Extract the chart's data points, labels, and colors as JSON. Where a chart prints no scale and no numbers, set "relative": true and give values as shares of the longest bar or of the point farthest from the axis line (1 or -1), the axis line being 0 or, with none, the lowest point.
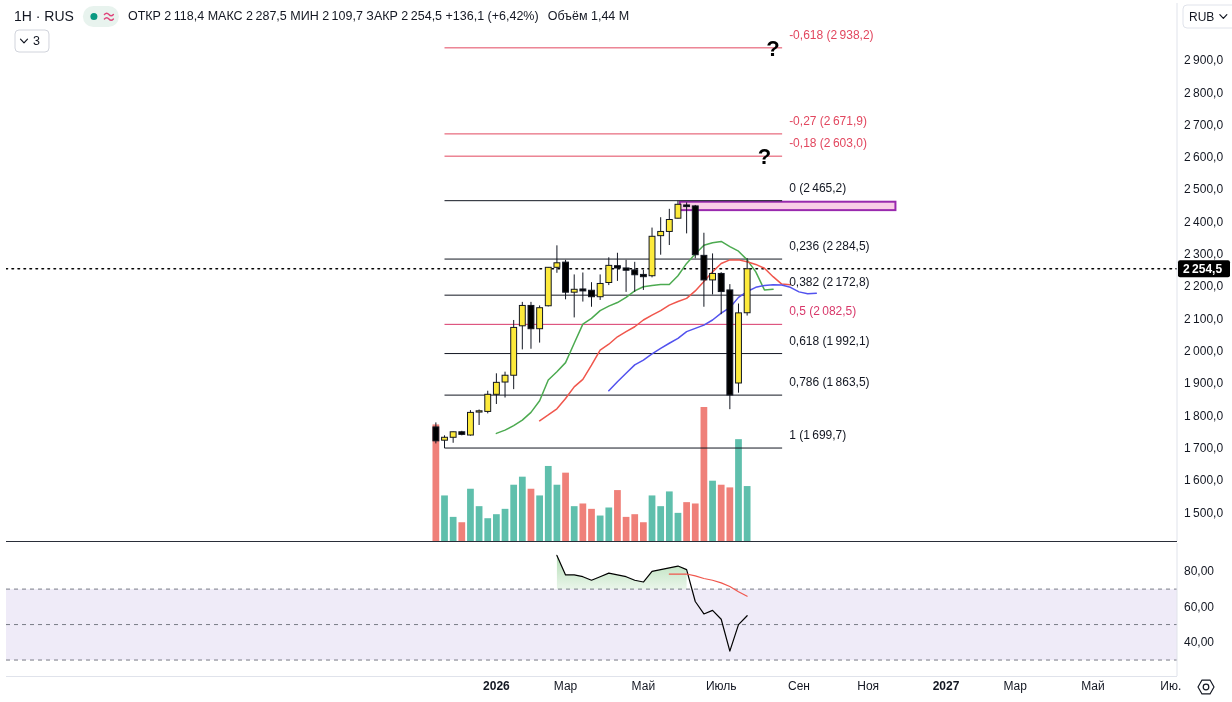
{
  "chart_data": [
    {
      "type": "candlestick",
      "title": "1Н · RUS",
      "subtitle": "ОТКР 2 118,4 МАКС 2 287,5 МИН 2 109,7 ЗАКР 2 254,5 +136,1 (+6,42%)",
      "ylabel": "RUB",
      "x": [
        "2025-11-17",
        "2025-11-24",
        "2025-12-01",
        "2025-12-08",
        "2025-12-15",
        "2025-12-22",
        "2025-12-29",
        "2026-01-05",
        "2026-01-12",
        "2026-01-19",
        "2026-01-26",
        "2026-02-02",
        "2026-02-09",
        "2026-02-16",
        "2026-02-23",
        "2026-03-02",
        "2026-03-09",
        "2026-03-16",
        "2026-03-23",
        "2026-03-30",
        "2026-04-06",
        "2026-04-13",
        "2026-04-20",
        "2026-04-27",
        "2026-05-04",
        "2026-05-11",
        "2026-05-18",
        "2026-05-25",
        "2026-06-01",
        "2026-06-08",
        "2026-06-15",
        "2026-06-22",
        "2026-06-29",
        "2026-07-06",
        "2026-07-13",
        "2026-07-20",
        "2026-07-27"
      ],
      "ohlc": [
        [
          1765,
          1779,
          1714,
          1722
        ],
        [
          1724,
          1739,
          1699.7,
          1733
        ],
        [
          1733,
          1751,
          1716,
          1750
        ],
        [
          1750,
          1753,
          1739,
          1742
        ],
        [
          1740,
          1817,
          1738,
          1810
        ],
        [
          1811,
          1819,
          1771,
          1815
        ],
        [
          1813,
          1877,
          1807,
          1866
        ],
        [
          1866,
          1931,
          1836,
          1903
        ],
        [
          1904,
          1936,
          1856,
          1925
        ],
        [
          1925,
          2096,
          1882,
          2073
        ],
        [
          2078,
          2152,
          2005,
          2141
        ],
        [
          2141,
          2152,
          2007,
          2069
        ],
        [
          2069,
          2141,
          2026,
          2134
        ],
        [
          2140,
          2260,
          2138,
          2259
        ],
        [
          2259,
          2327,
          2242,
          2273
        ],
        [
          2275,
          2282,
          2160,
          2182
        ],
        [
          2182,
          2237,
          2104,
          2191
        ],
        [
          2192,
          2243,
          2153,
          2186
        ],
        [
          2188,
          2213,
          2137,
          2168
        ],
        [
          2168,
          2237,
          2158,
          2209
        ],
        [
          2212,
          2290,
          2204,
          2265
        ],
        [
          2264,
          2304,
          2217,
          2257
        ],
        [
          2257,
          2282,
          2183,
          2250
        ],
        [
          2251,
          2276,
          2183,
          2236
        ],
        [
          2237,
          2251,
          2189,
          2230
        ],
        [
          2233,
          2382,
          2228,
          2355
        ],
        [
          2357,
          2414,
          2298,
          2370
        ],
        [
          2370,
          2440,
          2328,
          2407
        ],
        [
          2411,
          2465.2,
          2410,
          2454
        ],
        [
          2452,
          2460,
          2364,
          2447
        ],
        [
          2449,
          2452,
          2287,
          2298
        ],
        [
          2296,
          2366,
          2137,
          2220
        ],
        [
          2220,
          2302,
          2175,
          2240
        ],
        [
          2240,
          2244,
          2114,
          2184
        ],
        [
          2189,
          2207,
          1820,
          1864
        ],
        [
          1901,
          2147,
          1871,
          2118
        ],
        [
          2118.4,
          2287.5,
          2109.7,
          2254.5
        ]
      ],
      "colors": [
        "#000000",
        "#fdea3b",
        "#fdea3b",
        "#000000",
        "#fdea3b",
        "#fdea3b",
        "#fdea3b",
        "#fdea3b",
        "#fdea3b",
        "#fdea3b",
        "#fdea3b",
        "#000000",
        "#fdea3b",
        "#fdea3b",
        "#fdea3b",
        "#000000",
        "#fdea3b",
        "#000000",
        "#000000",
        "#fdea3b",
        "#fdea3b",
        "#000000",
        "#000000",
        "#000000",
        "#000000",
        "#fdea3b",
        "#fdea3b",
        "#fdea3b",
        "#fdea3b",
        "#000000",
        "#000000",
        "#000000",
        "#fdea3b",
        "#000000",
        "#000000",
        "#fdea3b",
        "#fdea3b"
      ],
      "series": [
        {
          "type": "line",
          "color": "#4caa50",
          "x": [
            "2026-01-05",
            "2026-01-12",
            "2026-01-19",
            "2026-01-26",
            "2026-02-02",
            "2026-02-09",
            "2026-02-16",
            "2026-02-23",
            "2026-03-02",
            "2026-03-09",
            "2026-03-16",
            "2026-03-23",
            "2026-03-30",
            "2026-04-06",
            "2026-04-13",
            "2026-04-20",
            "2026-04-27",
            "2026-05-04",
            "2026-05-11",
            "2026-05-18",
            "2026-05-25",
            "2026-06-01",
            "2026-06-08",
            "2026-06-15",
            "2026-06-22",
            "2026-06-29",
            "2026-07-06",
            "2026-07-13",
            "2026-07-20",
            "2026-07-27",
            "2026-08-03",
            "2026-08-10",
            "2026-08-17"
          ],
          "values": [
            1745,
            1755,
            1769,
            1786,
            1810,
            1846,
            1910,
            1936,
            1964,
            2024,
            2083,
            2101,
            2125,
            2139,
            2150,
            2166,
            2186,
            2199,
            2203,
            2206,
            2206,
            2233,
            2271,
            2300,
            2327,
            2335,
            2339,
            2323,
            2309,
            2282,
            2245,
            2189,
            2191
          ]
        },
        {
          "type": "line",
          "color": "#f0564c",
          "x": [
            "2026-02-09",
            "2026-02-16",
            "2026-02-23",
            "2026-03-02",
            "2026-03-09",
            "2026-03-16",
            "2026-03-23",
            "2026-03-30",
            "2026-04-06",
            "2026-04-13",
            "2026-04-20",
            "2026-04-27",
            "2026-05-04",
            "2026-05-11",
            "2026-05-18",
            "2026-05-25",
            "2026-06-01",
            "2026-06-08",
            "2026-06-15",
            "2026-06-22",
            "2026-06-29",
            "2026-07-06",
            "2026-07-13",
            "2026-07-20",
            "2026-07-27",
            "2026-08-03",
            "2026-08-10",
            "2026-08-17",
            "2026-08-24",
            "2026-08-31"
          ],
          "values": [
            1784,
            1802,
            1821,
            1853,
            1889,
            1912,
            1956,
            2003,
            2021,
            2044,
            2060,
            2075,
            2096,
            2111,
            2125,
            2142,
            2153,
            2163,
            2186,
            2215,
            2245,
            2271,
            2282,
            2282,
            2276,
            2268,
            2256,
            2230,
            2207,
            2205
          ]
        },
        {
          "type": "line",
          "color": "#5252ee",
          "x": [
            "2026-04-06",
            "2026-04-13",
            "2026-04-20",
            "2026-04-27",
            "2026-05-04",
            "2026-05-11",
            "2026-05-18",
            "2026-05-25",
            "2026-06-01",
            "2026-06-08",
            "2026-06-15",
            "2026-06-22",
            "2026-06-29",
            "2026-07-06",
            "2026-07-13",
            "2026-07-20",
            "2026-07-27",
            "2026-08-03",
            "2026-08-10",
            "2026-08-17",
            "2026-08-24",
            "2026-08-31",
            "2026-09-07",
            "2026-09-14",
            "2026-09-21"
          ],
          "values": [
            1877,
            1905,
            1931,
            1957,
            1972,
            1991,
            2008,
            2024,
            2039,
            2060,
            2070,
            2080,
            2096,
            2117,
            2134,
            2166,
            2184,
            2197,
            2203,
            2205,
            2204,
            2197,
            2183,
            2177,
            2179
          ]
        }
      ],
      "xlim": [
        "2024-12-04",
        "2027-07-10"
      ],
      "ylim": [
        1412,
        3077
      ],
      "yticks": [
        {
          "value": 1500,
          "label": "1 500,0"
        },
        {
          "value": 1600,
          "label": "1 600,0"
        },
        {
          "value": 1700,
          "label": "1 700,0"
        },
        {
          "value": 1800,
          "label": "1 800,0"
        },
        {
          "value": 1900,
          "label": "1 900,0"
        },
        {
          "value": 2000,
          "label": "2 000,0"
        },
        {
          "value": 2100,
          "label": "2 100,0"
        },
        {
          "value": 2200,
          "label": "2 200,0"
        },
        {
          "value": 2300,
          "label": "2 300,0"
        },
        {
          "value": 2400,
          "label": "2 400,0"
        },
        {
          "value": 2500,
          "label": "2 500,0"
        },
        {
          "value": 2600,
          "label": "2 600,0"
        },
        {
          "value": 2700,
          "label": "2 700,0"
        },
        {
          "value": 2800,
          "label": "2 800,0"
        },
        {
          "value": 2900,
          "label": "2 900,0"
        }
      ],
      "tick_labels": "y",
      "ref_lines": [
        {
          "axis": "y",
          "value": 2938.2,
          "label": "-0,618 (2 938,2)",
          "color": "#e2475f"
        },
        {
          "axis": "y",
          "value": 2671.9,
          "label": "-0,27 (2 671,9)",
          "color": "#e2475f"
        },
        {
          "axis": "y",
          "value": 2603.0,
          "label": "-0,18 (2 603,0)",
          "color": "#e2475f"
        },
        {
          "axis": "y",
          "value": 2465.2,
          "label": "0 (2 465,2)",
          "color": "#131722"
        },
        {
          "axis": "y",
          "value": 2284.5,
          "label": "0,236 (2 284,5)",
          "color": "#131722"
        },
        {
          "axis": "y",
          "value": 2172.8,
          "label": "0,382 (2 172,8)",
          "color": "#131722"
        },
        {
          "axis": "y",
          "value": 2082.5,
          "label": "0,5 (2 082,5)",
          "color": "#d8386a"
        },
        {
          "axis": "y",
          "value": 1992.1,
          "label": "0,618 (1 992,1)",
          "color": "#131722"
        },
        {
          "axis": "y",
          "value": 1863.5,
          "label": "0,786 (1 863,5)",
          "color": "#131722"
        },
        {
          "axis": "y",
          "value": 1699.7,
          "label": "1 (1 699,7)",
          "color": "#131722"
        },
        {
          "axis": "y",
          "value": 2254.5,
          "label": "2 254,5",
          "color": "#000000",
          "line_style": "dotted"
        }
      ],
      "bands": [
        {
          "axis": "y",
          "from": 2436,
          "to": 2462,
          "color": "#f9cde6"
        }
      ],
      "annotations": [
        "3",
        {
          "text": "?",
          "x": "2026-08-17",
          "y": 2938.2
        },
        {
          "text": "?",
          "x": "2026-08-10",
          "y": 2603.0
        }
      ]
    },
    {
      "type": "bar",
      "title": "Объём 1,44 M",
      "x": [
        "2025-11-17",
        "2025-11-24",
        "2025-12-01",
        "2025-12-08",
        "2025-12-15",
        "2025-12-22",
        "2025-12-29",
        "2026-01-05",
        "2026-01-12",
        "2026-01-19",
        "2026-01-26",
        "2026-02-02",
        "2026-02-09",
        "2026-02-16",
        "2026-02-23",
        "2026-03-02",
        "2026-03-09",
        "2026-03-16",
        "2026-03-23",
        "2026-03-30",
        "2026-04-06",
        "2026-04-13",
        "2026-04-20",
        "2026-04-27",
        "2026-05-04",
        "2026-05-11",
        "2026-05-18",
        "2026-05-25",
        "2026-06-01",
        "2026-06-08",
        "2026-06-15",
        "2026-06-22",
        "2026-06-29",
        "2026-07-06",
        "2026-07-13",
        "2026-07-20",
        "2026-07-27"
      ],
      "values": [
        0.87,
        0.34,
        0.18,
        0.14,
        0.39,
        0.26,
        0.17,
        0.2,
        0.24,
        0.42,
        0.48,
        0.39,
        0.34,
        0.56,
        0.42,
        0.51,
        0.26,
        0.28,
        0.24,
        0.19,
        0.25,
        0.38,
        0.18,
        0.2,
        0.14,
        0.34,
        0.26,
        0.37,
        0.21,
        0.29,
        0.28,
        1,
        0.45,
        0.42,
        0.4,
        0.76,
        0.41
      ],
      "colors": [
        "#ef8079",
        "#5fbfac",
        "#5fbfac",
        "#ef8079",
        "#5fbfac",
        "#5fbfac",
        "#5fbfac",
        "#5fbfac",
        "#5fbfac",
        "#5fbfac",
        "#5fbfac",
        "#ef8079",
        "#5fbfac",
        "#5fbfac",
        "#5fbfac",
        "#ef8079",
        "#5fbfac",
        "#ef8079",
        "#ef8079",
        "#5fbfac",
        "#5fbfac",
        "#ef8079",
        "#ef8079",
        "#ef8079",
        "#ef8079",
        "#5fbfac",
        "#5fbfac",
        "#5fbfac",
        "#5fbfac",
        "#ef8079",
        "#ef8079",
        "#ef8079",
        "#5fbfac",
        "#ef8079",
        "#ef8079",
        "#5fbfac",
        "#5fbfac"
      ],
      "relative": true,
      "xlim": [
        "2024-12-04",
        "2027-07-10"
      ],
      "tick_labels": false
    },
    {
      "type": "line",
      "series": [
        {
          "type": "area",
          "color": "#4caf50",
          "x": [
            "2026-02-23",
            "2026-03-02",
            "2026-03-09",
            "2026-03-16",
            "2026-03-23",
            "2026-03-30",
            "2026-04-06",
            "2026-04-13",
            "2026-04-20",
            "2026-04-27",
            "2026-05-04",
            "2026-05-11",
            "2026-05-18",
            "2026-05-25",
            "2026-06-01",
            "2026-06-08"
          ],
          "values": [
            89,
            78,
            78,
            77,
            75,
            77,
            79,
            78,
            77,
            75,
            74,
            80,
            81,
            82,
            83,
            81
          ]
        },
        {
          "color": "#000000",
          "x": [
            "2026-02-23",
            "2026-03-02",
            "2026-03-09",
            "2026-03-16",
            "2026-03-23",
            "2026-03-30",
            "2026-04-06",
            "2026-04-13",
            "2026-04-20",
            "2026-04-27",
            "2026-05-04",
            "2026-05-11",
            "2026-05-18",
            "2026-05-25",
            "2026-06-01",
            "2026-06-08",
            "2026-06-15",
            "2026-06-22",
            "2026-06-29",
            "2026-07-06",
            "2026-07-13",
            "2026-07-20",
            "2026-07-27"
          ],
          "values": [
            89,
            78,
            78,
            77,
            75,
            77,
            79,
            78,
            77,
            75,
            74,
            80,
            81,
            82,
            83,
            81,
            63,
            56,
            58,
            53,
            35,
            50,
            55
          ]
        },
        {
          "color": "#f0564c",
          "x": [
            "2026-05-25",
            "2026-06-01",
            "2026-06-08",
            "2026-06-15",
            "2026-06-22",
            "2026-06-29",
            "2026-07-06",
            "2026-07-13",
            "2026-07-20",
            "2026-07-27"
          ],
          "values": [
            78.5,
            78.5,
            78.5,
            77.5,
            76,
            75,
            73.5,
            71.5,
            68.5,
            66
          ]
        }
      ],
      "xlim": [
        "2024-12-04",
        "2027-07-10"
      ],
      "xticks": [
        {
          "value": "2026-01-05",
          "label": "2026"
        },
        {
          "value": "2026-03-02",
          "label": "Мар"
        },
        {
          "value": "2026-05-04",
          "label": "Май"
        },
        {
          "value": "2026-07-06",
          "label": "Июль"
        },
        {
          "value": "2026-09-07",
          "label": "Сен"
        },
        {
          "value": "2026-11-02",
          "label": "Ноя"
        },
        {
          "value": "2027-01-04",
          "label": "2027"
        },
        {
          "value": "2027-03-01",
          "label": "Мар"
        },
        {
          "value": "2027-05-03",
          "label": "Май"
        },
        {
          "value": "2027-07-05",
          "label": "Ию."
        }
      ],
      "ylim": [
        21,
        96
      ],
      "yticks": [
        {
          "value": 80,
          "label": "80,00"
        },
        {
          "value": 60,
          "label": "60,00"
        },
        {
          "value": 40,
          "label": "40,00"
        }
      ],
      "bands": [
        {
          "axis": "y",
          "from": 30,
          "to": 70,
          "color": "#efebf8"
        }
      ],
      "ref_lines": [
        {
          "axis": "y",
          "value": 70,
          "color": "#787b86",
          "line_style": "dashed"
        },
        {
          "axis": "y",
          "value": 50,
          "color": "#787b86",
          "line_style": "dashed"
        },
        {
          "axis": "y",
          "value": 30,
          "color": "#787b86",
          "line_style": "dashed"
        }
      ]
    }
  ]
}
